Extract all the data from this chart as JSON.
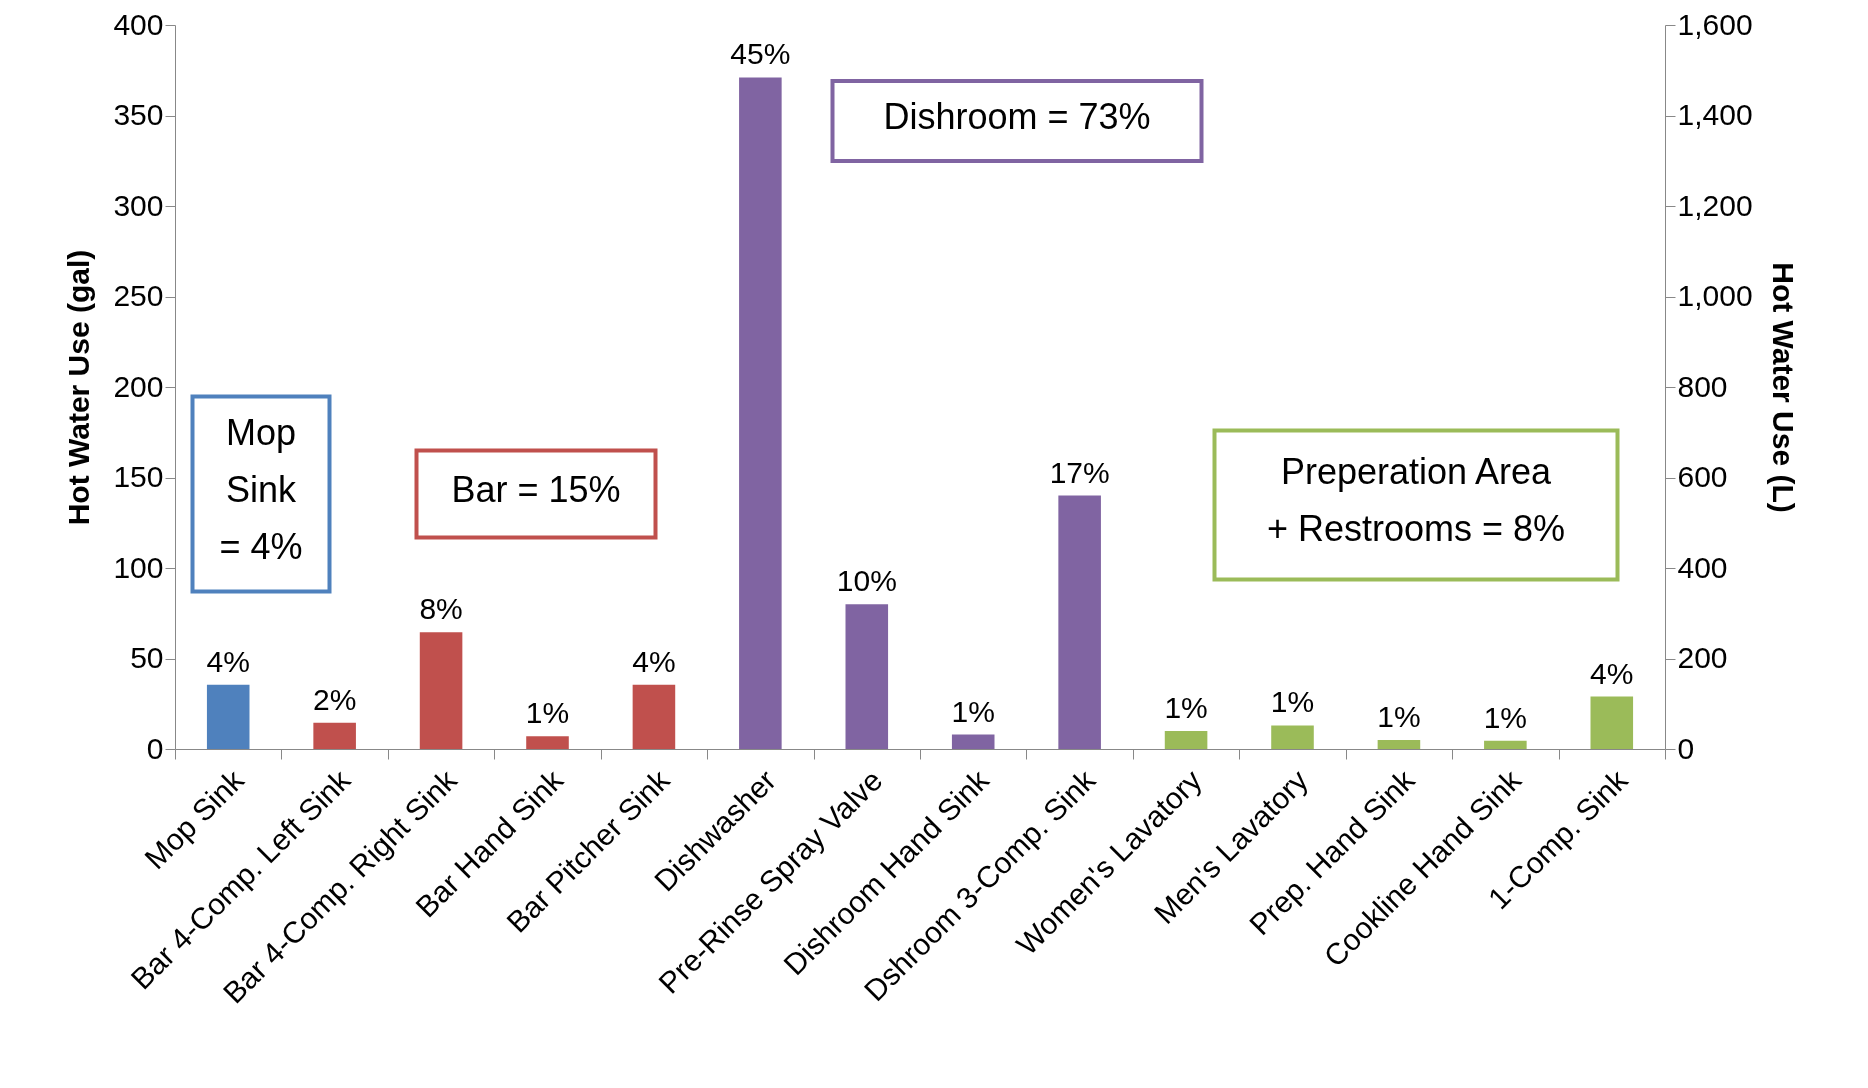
{
  "chart_data": {
    "type": "bar",
    "categories": [
      "Mop Sink",
      "Bar 4-Comp. Left Sink",
      "Bar 4-Comp. Right Sink",
      "Bar Hand Sink",
      "Bar Pitcher Sink",
      "Dishwasher",
      "Pre-Rinse Spray Valve",
      "Dishroom Hand Sink",
      "Dshroom 3-Comp. Sink",
      "Women's Lavatory",
      "Men's Lavatory",
      "Prep. Hand Sink",
      "Cookline Hand Sink",
      "1-Comp. Sink"
    ],
    "values": [
      35.5,
      14.5,
      64.5,
      7,
      35.5,
      371,
      80,
      8,
      140,
      10,
      13,
      5,
      4.5,
      29
    ],
    "colors": [
      "#4f81bd",
      "#c0504d",
      "#c0504d",
      "#c0504d",
      "#c0504d",
      "#8064a2",
      "#8064a2",
      "#8064a2",
      "#8064a2",
      "#9bbb59",
      "#9bbb59",
      "#9bbb59",
      "#9bbb59",
      "#9bbb59"
    ],
    "ylabel": "Hot Water Use (gal)",
    "y2label": "Hot Water Use (L)",
    "ylim": [
      0,
      400
    ],
    "yticks": [
      0,
      50,
      100,
      150,
      200,
      250,
      300,
      350,
      400
    ],
    "y2lim": [
      0,
      1600
    ],
    "y2ticks": [
      0,
      {
        "value": 200,
        "label": "200"
      },
      {
        "value": 400,
        "label": "400"
      },
      {
        "value": 600,
        "label": "600"
      },
      {
        "value": 800,
        "label": "800"
      },
      {
        "value": 1000,
        "label": "1,000"
      },
      {
        "value": 1200,
        "label": "1,200"
      },
      {
        "value": 1400,
        "label": "1,400"
      },
      {
        "value": 1600,
        "label": "1,600"
      }
    ],
    "annotations": [
      "Mop Sink = 4%",
      "Bar = 15%",
      "Dishroom = 73%",
      "Preperation Area + Restrooms = 8%",
      {
        "text": "4%",
        "x": "Mop Sink",
        "y": 35.5
      },
      {
        "text": "2%",
        "x": "Bar 4-Comp. Left Sink",
        "y": 14.5
      },
      {
        "text": "8%",
        "x": "Bar 4-Comp. Right Sink",
        "y": 64.5
      },
      {
        "text": "1%",
        "x": "Bar Hand Sink",
        "y": 7
      },
      {
        "text": "4%",
        "x": "Bar Pitcher Sink",
        "y": 35.5
      },
      {
        "text": "45%",
        "x": "Dishwasher",
        "y": 371
      },
      {
        "text": "10%",
        "x": "Pre-Rinse Spray Valve",
        "y": 80
      },
      {
        "text": "1%",
        "x": "Dishroom Hand Sink",
        "y": 8
      },
      {
        "text": "17%",
        "x": "Dshroom 3-Comp. Sink",
        "y": 140
      },
      {
        "text": "1%",
        "x": "Women's Lavatory",
        "y": 10
      },
      {
        "text": "1%",
        "x": "Men's Lavatory",
        "y": 13
      },
      {
        "text": "1%",
        "x": "Prep. Hand Sink",
        "y": 5
      },
      {
        "text": "1%",
        "x": "Cookline Hand Sink",
        "y": 4.5
      },
      {
        "text": "4%",
        "x": "1-Comp. Sink",
        "y": 29
      }
    ],
    "grid": false
  }
}
